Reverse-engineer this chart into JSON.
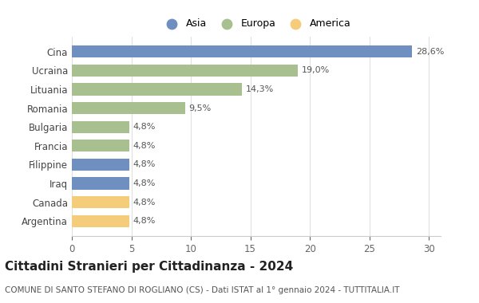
{
  "categories": [
    "Argentina",
    "Canada",
    "Iraq",
    "Filippine",
    "Francia",
    "Bulgaria",
    "Romania",
    "Lituania",
    "Ucraina",
    "Cina"
  ],
  "values": [
    4.8,
    4.8,
    4.8,
    4.8,
    4.8,
    4.8,
    9.5,
    14.3,
    19.0,
    28.6
  ],
  "labels": [
    "4,8%",
    "4,8%",
    "4,8%",
    "4,8%",
    "4,8%",
    "4,8%",
    "9,5%",
    "14,3%",
    "19,0%",
    "28,6%"
  ],
  "colors": [
    "#f5cc7a",
    "#f5cc7a",
    "#6e8fbf",
    "#6e8fbf",
    "#a8bf8f",
    "#a8bf8f",
    "#a8bf8f",
    "#a8bf8f",
    "#a8bf8f",
    "#6e8fbf"
  ],
  "legend": [
    {
      "label": "Asia",
      "color": "#6e8fbf"
    },
    {
      "label": "Europa",
      "color": "#a8bf8f"
    },
    {
      "label": "America",
      "color": "#f5cc7a"
    }
  ],
  "xlim": [
    0,
    31
  ],
  "xticks": [
    0,
    5,
    10,
    15,
    20,
    25,
    30
  ],
  "title": "Cittadini Stranieri per Cittadinanza - 2024",
  "subtitle": "COMUNE DI SANTO STEFANO DI ROGLIANO (CS) - Dati ISTAT al 1° gennaio 2024 - TUTTITALIA.IT",
  "title_fontsize": 11,
  "subtitle_fontsize": 7.5,
  "bar_height": 0.65,
  "label_fontsize": 8,
  "tick_fontsize": 8.5,
  "background_color": "#ffffff",
  "grid_color": "#e0e0e0"
}
